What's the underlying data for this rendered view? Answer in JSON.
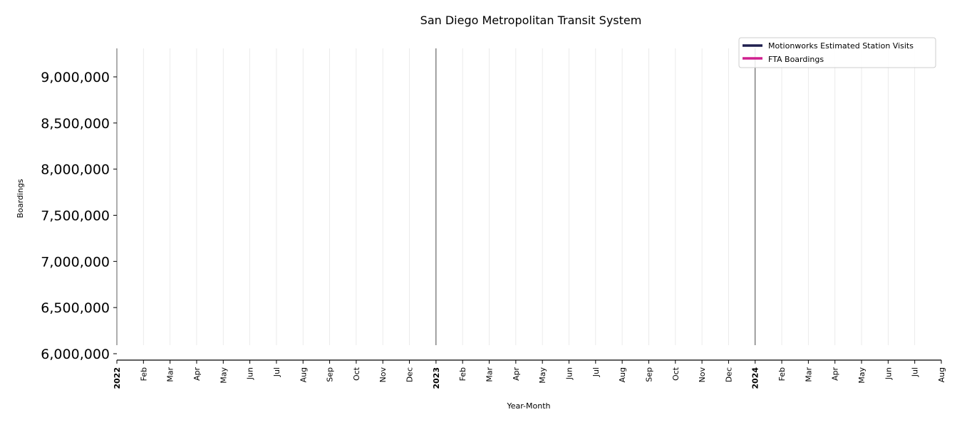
{
  "chart_data": {
    "type": "line",
    "title": "San Diego Metropolitan Transit System",
    "xlabel": "Year-Month",
    "ylabel": "Boardings",
    "ylim": [
      6000000,
      9300000
    ],
    "xlim": [
      "2022-01",
      "2024-08"
    ],
    "y_ticks": [
      {
        "value": 6000000,
        "label": "6,000,000"
      },
      {
        "value": 6500000,
        "label": "6,500,000"
      },
      {
        "value": 7000000,
        "label": "7,000,000"
      },
      {
        "value": 7500000,
        "label": "7,500,000"
      },
      {
        "value": 8000000,
        "label": "8,000,000"
      },
      {
        "value": 8500000,
        "label": "8,500,000"
      },
      {
        "value": 9000000,
        "label": "9,000,000"
      }
    ],
    "x_ticks": [
      {
        "date": "2022-01",
        "label": "2022",
        "year": true
      },
      {
        "date": "2022-02",
        "label": "Feb"
      },
      {
        "date": "2022-03",
        "label": "Mar"
      },
      {
        "date": "2022-04",
        "label": "Apr"
      },
      {
        "date": "2022-05",
        "label": "May"
      },
      {
        "date": "2022-06",
        "label": "Jun"
      },
      {
        "date": "2022-07",
        "label": "Jul"
      },
      {
        "date": "2022-08",
        "label": "Aug"
      },
      {
        "date": "2022-09",
        "label": "Sep"
      },
      {
        "date": "2022-10",
        "label": "Oct"
      },
      {
        "date": "2022-11",
        "label": "Nov"
      },
      {
        "date": "2022-12",
        "label": "Dec"
      },
      {
        "date": "2023-01",
        "label": "2023",
        "year": true
      },
      {
        "date": "2023-02",
        "label": "Feb"
      },
      {
        "date": "2023-03",
        "label": "Mar"
      },
      {
        "date": "2023-04",
        "label": "Apr"
      },
      {
        "date": "2023-05",
        "label": "May"
      },
      {
        "date": "2023-06",
        "label": "Jun"
      },
      {
        "date": "2023-07",
        "label": "Jul"
      },
      {
        "date": "2023-08",
        "label": "Aug"
      },
      {
        "date": "2023-09",
        "label": "Sep"
      },
      {
        "date": "2023-10",
        "label": "Oct"
      },
      {
        "date": "2023-11",
        "label": "Nov"
      },
      {
        "date": "2023-12",
        "label": "Dec"
      },
      {
        "date": "2024-01",
        "label": "2024",
        "year": true
      },
      {
        "date": "2024-02",
        "label": "Feb"
      },
      {
        "date": "2024-03",
        "label": "Mar"
      },
      {
        "date": "2024-04",
        "label": "Apr"
      },
      {
        "date": "2024-05",
        "label": "May"
      },
      {
        "date": "2024-06",
        "label": "Jun"
      },
      {
        "date": "2024-07",
        "label": "Jul"
      },
      {
        "date": "2024-08",
        "label": "Aug"
      }
    ],
    "year_dividers": [
      "2022-01",
      "2023-01",
      "2024-01"
    ],
    "grid": "vertical",
    "legend": {
      "placement": "top-right",
      "entries": [
        {
          "label": "Motionworks Estimated Station Visits",
          "color": "#1f1f4f"
        },
        {
          "label": "FTA Boardings",
          "color": "#d0208f"
        }
      ]
    },
    "series": [
      {
        "name": "Motionworks Estimated Station Visits",
        "color": "#1f1f4f",
        "values": []
      },
      {
        "name": "FTA Boardings",
        "color": "#d0208f",
        "values": []
      }
    ]
  }
}
